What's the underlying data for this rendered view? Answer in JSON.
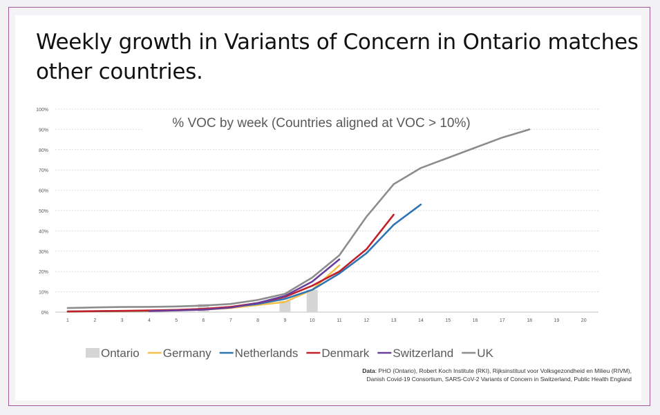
{
  "slide": {
    "title": "Weekly growth in Variants of Concern in Ontario matches other countries.",
    "source_label": "Data",
    "source_line1": ": PHO (Ontario), Robert Koch Institute (RKI), Rijksinstituut voor Volksgezondheid en Milieu (RIVM),",
    "source_line2": "Danish Covid-19 Consortium, SARS-CoV-2 Variants of Concern in Switzerland, Public Health England"
  },
  "colors": {
    "ontario": "#d6d6d6",
    "germany": "#f4c04c",
    "netherlands": "#2e75b6",
    "denmark": "#c0202a",
    "switzerland": "#6a3d9a",
    "uk": "#8c8c8c",
    "grid": "#d9d9d9",
    "text": "#595959"
  },
  "chart_data": {
    "type": "line",
    "title": "% VOC by week (Countries aligned at VOC > 10%)",
    "xlabel": "",
    "ylabel": "",
    "categories": [
      "1",
      "2",
      "3",
      "4",
      "5",
      "6",
      "7",
      "8",
      "9",
      "10",
      "11",
      "12",
      "13",
      "14",
      "15",
      "16",
      "17",
      "18",
      "19",
      "20"
    ],
    "yticks": [
      "0%",
      "10%",
      "20%",
      "30%",
      "40%",
      "50%",
      "60%",
      "70%",
      "80%",
      "90%",
      "100%"
    ],
    "ylim": [
      0,
      100
    ],
    "grid": true,
    "legend": "bottom",
    "bars": {
      "name": "Ontario",
      "x": [
        6,
        9,
        10
      ],
      "values": [
        4,
        5.5,
        11
      ]
    },
    "series": [
      {
        "name": "Germany",
        "color_key": "germany",
        "x": [
          1,
          2,
          3,
          4,
          5,
          6,
          7,
          8,
          9,
          10,
          11
        ],
        "values": [
          0.2,
          0.3,
          0.4,
          0.5,
          0.8,
          1.2,
          2,
          3.5,
          5,
          11,
          23
        ]
      },
      {
        "name": "Netherlands",
        "color_key": "netherlands",
        "x": [
          1,
          2,
          3,
          4,
          5,
          6,
          7,
          8,
          9,
          10,
          11,
          12,
          13,
          14
        ],
        "values": [
          0.3,
          0.4,
          0.5,
          0.7,
          1,
          1.5,
          2.5,
          4,
          6.5,
          11,
          19,
          29,
          43,
          53
        ]
      },
      {
        "name": "Denmark",
        "color_key": "denmark",
        "x": [
          1,
          2,
          3,
          4,
          5,
          6,
          7,
          8,
          9,
          10,
          11,
          12,
          13
        ],
        "values": [
          0.3,
          0.5,
          0.6,
          0.8,
          1.1,
          1.6,
          2.6,
          4.5,
          7.5,
          13,
          20,
          31,
          48
        ]
      },
      {
        "name": "Switzerland",
        "color_key": "switzerland",
        "x": [
          4,
          5,
          6,
          7,
          8,
          9,
          10,
          11
        ],
        "values": [
          0.5,
          0.8,
          1.2,
          2.2,
          4.5,
          8,
          15,
          26
        ]
      },
      {
        "name": "UK",
        "color_key": "uk",
        "x": [
          1,
          2,
          3,
          4,
          5,
          6,
          7,
          8,
          9,
          10,
          11,
          12,
          13,
          14,
          15,
          16,
          17,
          18
        ],
        "values": [
          2,
          2.3,
          2.5,
          2.6,
          2.8,
          3.2,
          4,
          6,
          9,
          17,
          28,
          47,
          63,
          71,
          76,
          81,
          86,
          90
        ]
      }
    ]
  }
}
